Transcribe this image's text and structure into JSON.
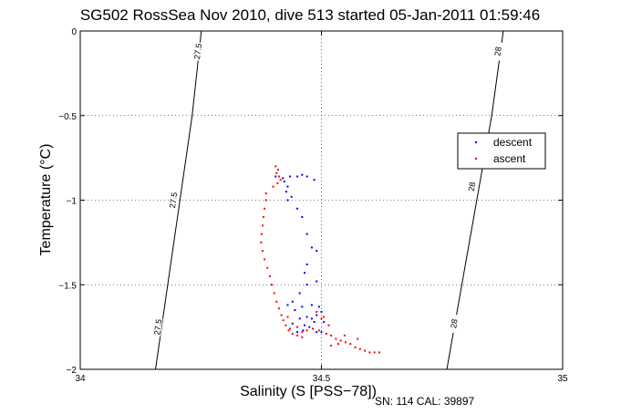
{
  "chart_data": {
    "type": "scatter",
    "title": "SG502 RossSea Nov 2010, dive 513 started 05-Jan-2011 01:59:46",
    "xlabel": "Salinity (S [PSS−78])",
    "ylabel": "Temperature (°C)",
    "footer": "SN: 114  CAL: 39897",
    "xlim": [
      34,
      35
    ],
    "ylim": [
      -2,
      0
    ],
    "x_ticks": [
      "34",
      "34.5",
      "35"
    ],
    "y_ticks": [
      "0",
      "−0.5",
      "−1",
      "−1.5",
      "−2"
    ],
    "grid": true,
    "legend_position": "right",
    "colors": {
      "descent": "#0000ff",
      "ascent": "#ff0000",
      "contour": "#000000"
    },
    "legend": [
      {
        "key": "descent",
        "label": "descent",
        "color": "#0000ff"
      },
      {
        "key": "ascent",
        "label": "ascent",
        "color": "#ff0000"
      }
    ],
    "contours": [
      {
        "label": "27.5",
        "points": [
          [
            34.156,
            -2.0
          ],
          [
            34.232,
            -0.5
          ],
          [
            34.251,
            0.0
          ]
        ],
        "label_positions": [
          [
            34.244,
            -0.12
          ],
          [
            34.193,
            -1.0
          ],
          [
            34.161,
            -1.75
          ]
        ]
      },
      {
        "label": "28",
        "points": [
          [
            34.76,
            -2.0
          ],
          [
            34.853,
            -0.5
          ],
          [
            34.877,
            0.0
          ]
        ],
        "label_positions": [
          [
            34.866,
            -0.12
          ],
          [
            34.812,
            -0.92
          ],
          [
            34.775,
            -1.73
          ]
        ]
      }
    ],
    "series": [
      {
        "name": "descent",
        "points": [
          [
            34.405,
            -0.86
          ],
          [
            34.42,
            -0.87
          ],
          [
            34.435,
            -0.86
          ],
          [
            34.45,
            -0.86
          ],
          [
            34.46,
            -0.85
          ],
          [
            34.47,
            -0.86
          ],
          [
            34.485,
            -0.88
          ],
          [
            34.423,
            -0.89
          ],
          [
            34.43,
            -0.92
          ],
          [
            34.427,
            -0.95
          ],
          [
            34.438,
            -0.98
          ],
          [
            34.43,
            -1.0
          ],
          [
            34.45,
            -1.05
          ],
          [
            34.46,
            -1.1
          ],
          [
            34.47,
            -1.2
          ],
          [
            34.48,
            -1.28
          ],
          [
            34.49,
            -1.3
          ],
          [
            34.47,
            -1.38
          ],
          [
            34.465,
            -1.43
          ],
          [
            34.49,
            -1.48
          ],
          [
            34.47,
            -1.5
          ],
          [
            34.455,
            -1.55
          ],
          [
            34.44,
            -1.6
          ],
          [
            34.43,
            -1.62
          ],
          [
            34.445,
            -1.65
          ],
          [
            34.46,
            -1.63
          ],
          [
            34.48,
            -1.62
          ],
          [
            34.495,
            -1.63
          ],
          [
            34.5,
            -1.66
          ],
          [
            34.49,
            -1.68
          ],
          [
            34.485,
            -1.72
          ],
          [
            34.475,
            -1.75
          ],
          [
            34.462,
            -1.77
          ],
          [
            34.45,
            -1.78
          ],
          [
            34.44,
            -1.73
          ],
          [
            34.455,
            -1.7
          ],
          [
            34.47,
            -1.69
          ],
          [
            34.48,
            -1.7
          ],
          [
            34.5,
            -1.78
          ],
          [
            34.505,
            -1.72
          ],
          [
            34.49,
            -1.78
          ],
          [
            34.465,
            -1.74
          ]
        ]
      },
      {
        "name": "ascent",
        "points": [
          [
            34.405,
            -0.8
          ],
          [
            34.41,
            -0.82
          ],
          [
            34.407,
            -0.84
          ],
          [
            34.412,
            -0.86
          ],
          [
            34.415,
            -0.88
          ],
          [
            34.409,
            -0.9
          ],
          [
            34.4,
            -0.92
          ],
          [
            34.385,
            -0.96
          ],
          [
            34.385,
            -1.0
          ],
          [
            34.382,
            -1.05
          ],
          [
            34.38,
            -1.1
          ],
          [
            34.378,
            -1.15
          ],
          [
            34.376,
            -1.2
          ],
          [
            34.375,
            -1.25
          ],
          [
            34.378,
            -1.3
          ],
          [
            34.382,
            -1.35
          ],
          [
            34.388,
            -1.4
          ],
          [
            34.393,
            -1.45
          ],
          [
            34.397,
            -1.5
          ],
          [
            34.402,
            -1.55
          ],
          [
            34.407,
            -1.6
          ],
          [
            34.412,
            -1.64
          ],
          [
            34.417,
            -1.68
          ],
          [
            34.421,
            -1.71
          ],
          [
            34.426,
            -1.74
          ],
          [
            34.432,
            -1.77
          ],
          [
            34.44,
            -1.79
          ],
          [
            34.45,
            -1.8
          ],
          [
            34.46,
            -1.78
          ],
          [
            34.47,
            -1.77
          ],
          [
            34.482,
            -1.76
          ],
          [
            34.495,
            -1.77
          ],
          [
            34.51,
            -1.79
          ],
          [
            34.52,
            -1.8
          ],
          [
            34.53,
            -1.82
          ],
          [
            34.54,
            -1.83
          ],
          [
            34.55,
            -1.84
          ],
          [
            34.56,
            -1.85
          ],
          [
            34.57,
            -1.87
          ],
          [
            34.58,
            -1.88
          ],
          [
            34.59,
            -1.89
          ],
          [
            34.6,
            -1.9
          ],
          [
            34.61,
            -1.9
          ],
          [
            34.62,
            -1.9
          ],
          [
            34.575,
            -1.82
          ],
          [
            34.548,
            -1.8
          ],
          [
            34.535,
            -1.85
          ],
          [
            34.52,
            -1.86
          ],
          [
            34.5,
            -1.7
          ],
          [
            34.49,
            -1.66
          ],
          [
            34.515,
            -1.74
          ],
          [
            34.43,
            -1.69
          ],
          [
            34.435,
            -1.76
          ],
          [
            34.46,
            -1.81
          ],
          [
            34.505,
            -1.69
          ],
          [
            34.45,
            -1.75
          ]
        ]
      }
    ]
  }
}
